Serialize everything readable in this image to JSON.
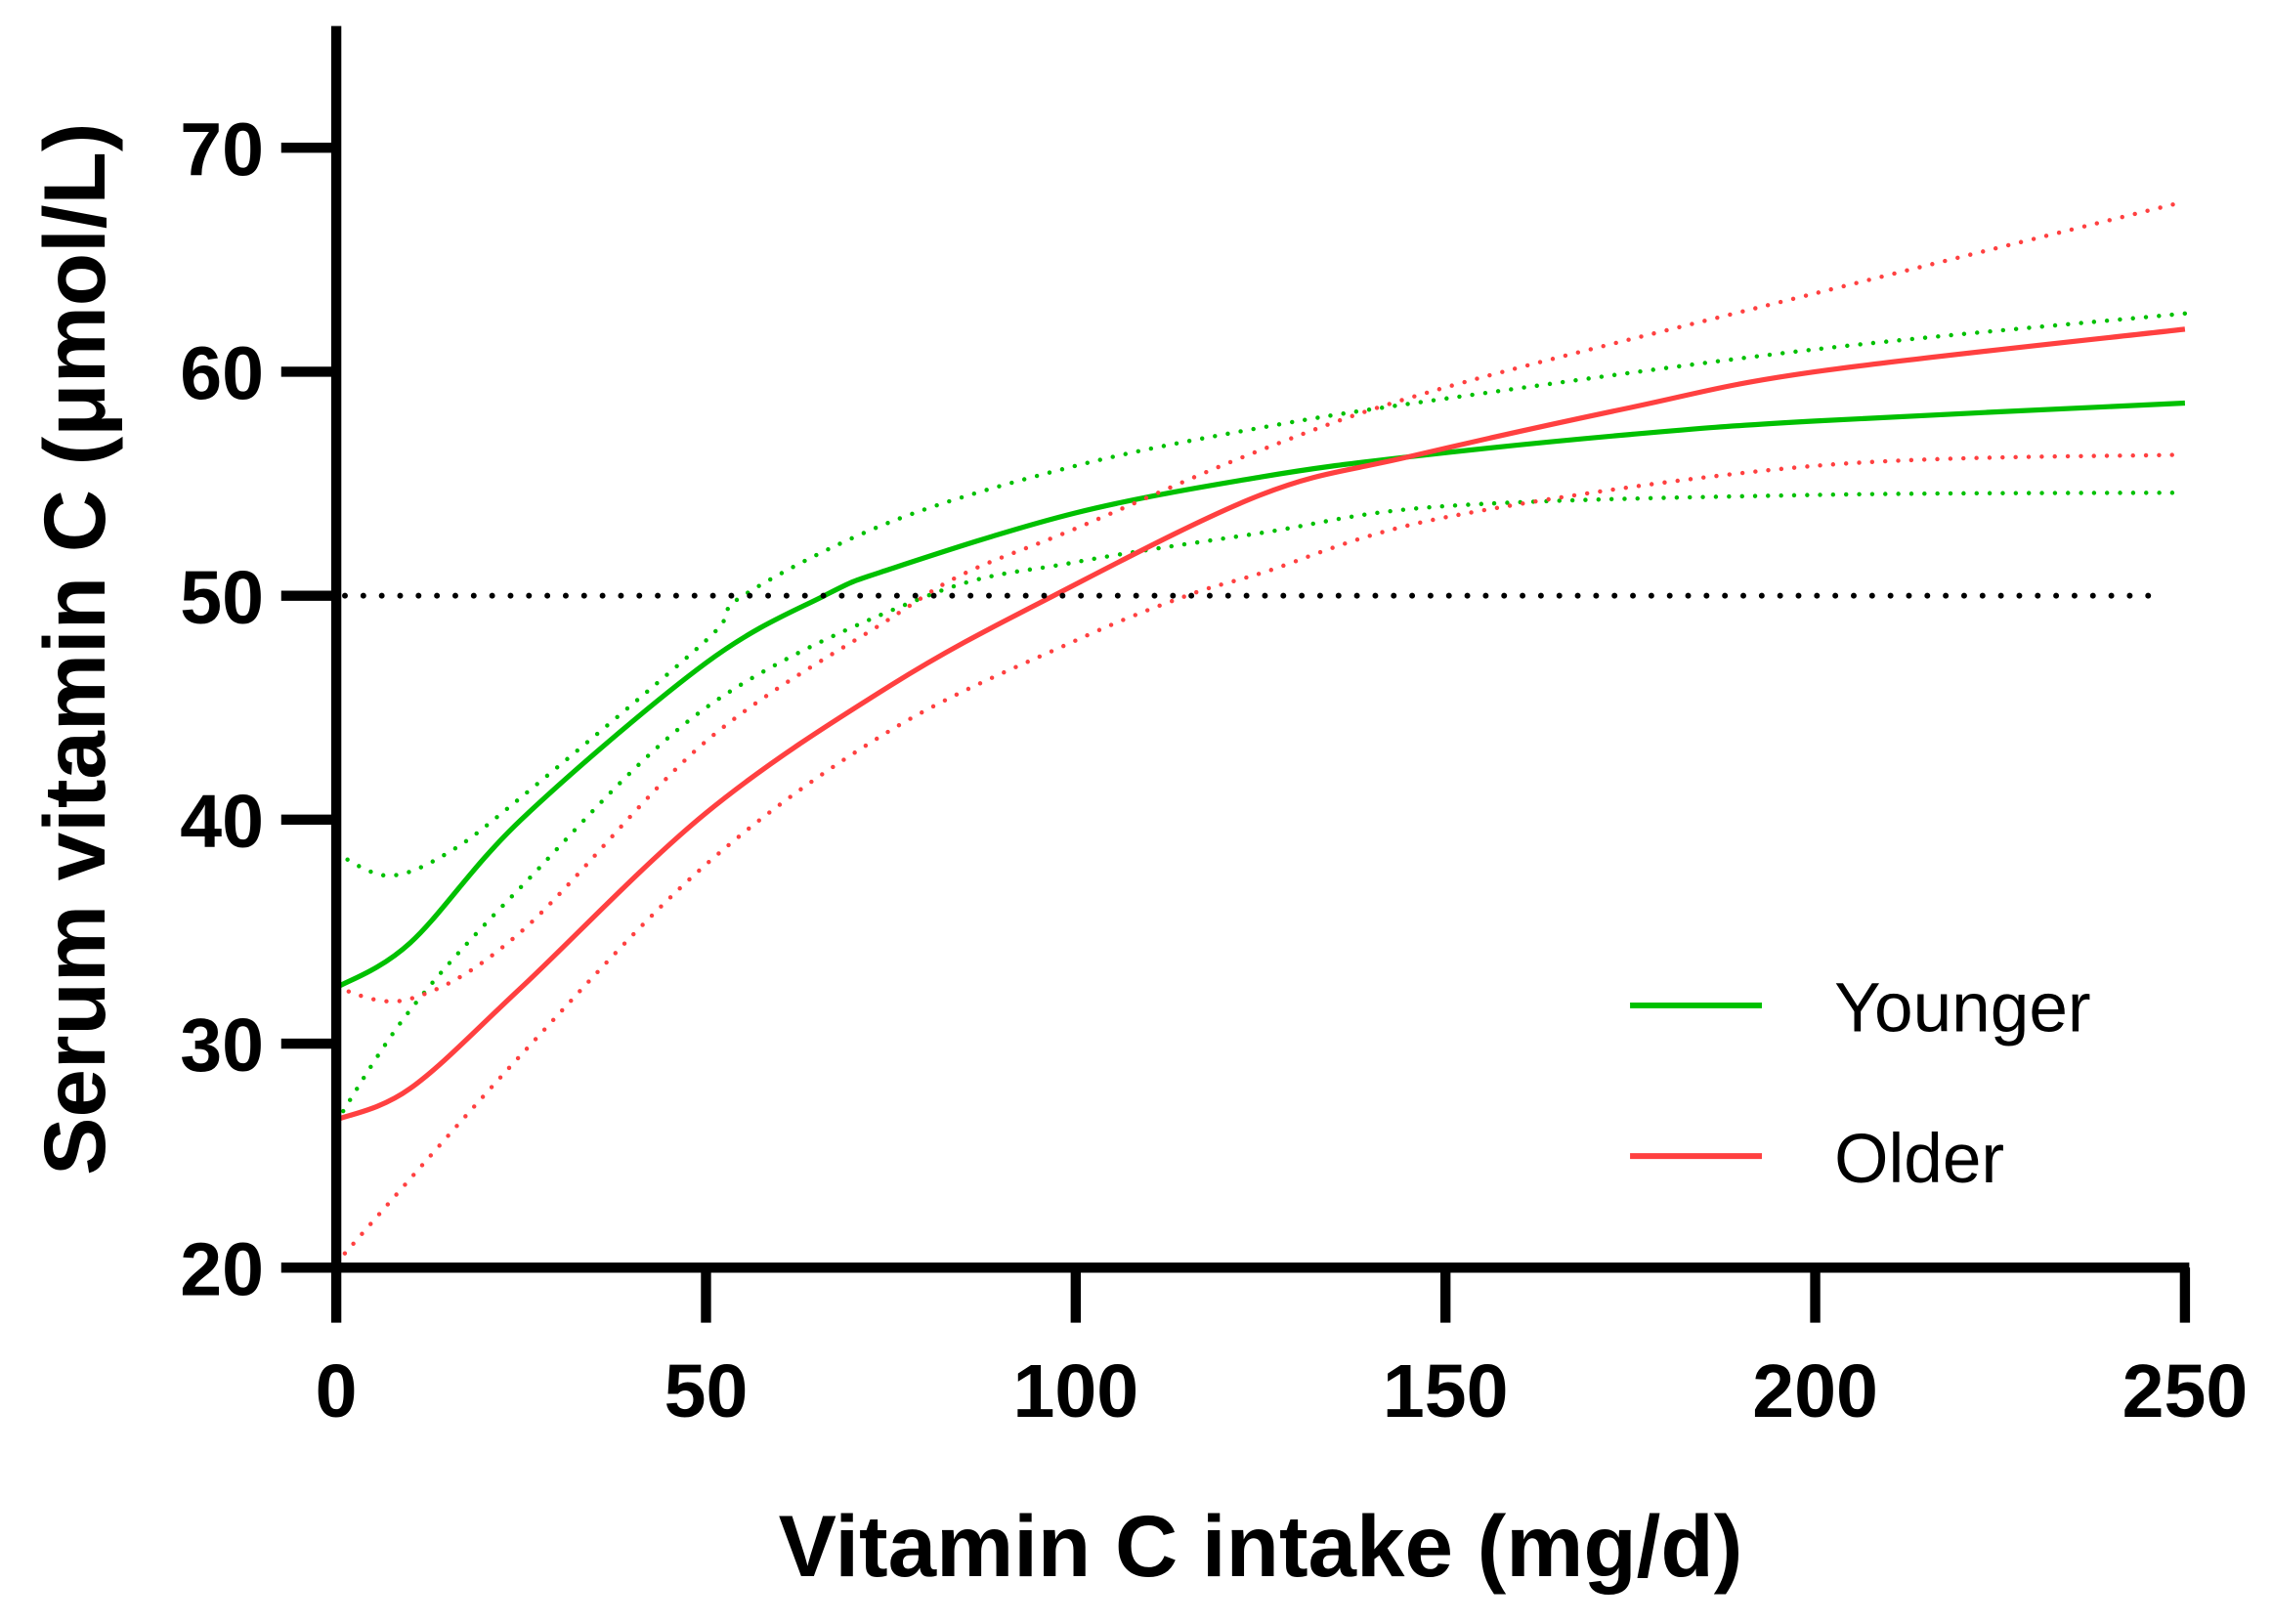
{
  "chart_data": {
    "type": "line",
    "title": "",
    "xlabel": "Vitamin C intake (mg/d)",
    "ylabel": "Serum vitamin C (μmol/L)",
    "xlim": [
      0,
      250
    ],
    "ylim": [
      20,
      75
    ],
    "xticks": [
      0,
      50,
      100,
      150,
      200,
      250
    ],
    "yticks": [
      20,
      30,
      40,
      50,
      60,
      70
    ],
    "grid": false,
    "legend_position": "bottom-right",
    "reference_line": {
      "y": 50,
      "x_range": [
        0,
        247
      ],
      "style": "dotted",
      "color": "#000000"
    },
    "series": [
      {
        "name": "Younger",
        "color": "#00c000",
        "style": "solid",
        "x": [
          0,
          10,
          25,
          50,
          66,
          75,
          100,
          125,
          145,
          175,
          200,
          250
        ],
        "y": [
          32.5,
          34.5,
          40,
          47,
          50,
          51.2,
          53.7,
          55.3,
          56.2,
          57.2,
          57.8,
          58.6
        ]
      },
      {
        "name": "",
        "color": "#00c000",
        "style": "dotted",
        "band_of": "Younger",
        "bound": "upper",
        "x": [
          0,
          7,
          15,
          25,
          50,
          55,
          75,
          100,
          125,
          150,
          200,
          250
        ],
        "y": [
          38.5,
          37.5,
          38.5,
          41,
          48,
          50,
          53.3,
          55.8,
          57.5,
          58.8,
          61,
          62.6
        ]
      },
      {
        "name": "",
        "color": "#00c000",
        "style": "dotted",
        "band_of": "Younger",
        "bound": "lower",
        "x": [
          0,
          10,
          25,
          50,
          80,
          100,
          125,
          150,
          200,
          250
        ],
        "y": [
          26.5,
          31.5,
          37,
          45,
          50,
          51.5,
          52.8,
          54,
          54.5,
          54.6
        ]
      },
      {
        "name": "Older",
        "color": "#ff4040",
        "style": "solid",
        "x": [
          0,
          10,
          25,
          50,
          75,
          97,
          125,
          145,
          175,
          200,
          250
        ],
        "y": [
          26.6,
          28,
          32.5,
          40.3,
          46,
          50,
          54.5,
          56.2,
          58.4,
          60,
          61.9
        ]
      },
      {
        "name": "",
        "color": "#ff4040",
        "style": "dotted",
        "band_of": "Older",
        "bound": "upper",
        "x": [
          0,
          10,
          25,
          50,
          75,
          85,
          100,
          125,
          150,
          200,
          250
        ],
        "y": [
          32.5,
          32,
          35,
          43.5,
          49,
          51,
          53,
          56.5,
          59.3,
          63.5,
          67.6
        ]
      },
      {
        "name": "",
        "color": "#ff4040",
        "style": "dotted",
        "band_of": "Older",
        "bound": "lower",
        "x": [
          0,
          25,
          50,
          75,
          100,
          115,
          125,
          150,
          200,
          250
        ],
        "y": [
          20.2,
          29.5,
          38,
          44,
          48,
          50,
          51,
          53.5,
          55.8,
          56.3
        ]
      }
    ],
    "legend": [
      {
        "label": "Younger",
        "color": "#00c000"
      },
      {
        "label": "Older",
        "color": "#ff4040"
      }
    ]
  }
}
